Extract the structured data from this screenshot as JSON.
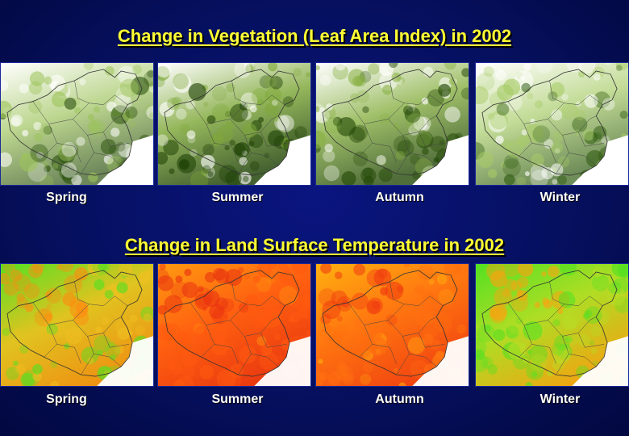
{
  "vegetation": {
    "title": "Change in Vegetation (Leaf Area Index) in 2002",
    "panels": [
      {
        "season": "Spring",
        "palette": [
          "#ffffff",
          "#9dc35a",
          "#274d0a"
        ],
        "density": 0.35
      },
      {
        "season": "Summer",
        "palette": [
          "#ffffff",
          "#7fa83a",
          "#1f4206"
        ],
        "density": 0.8
      },
      {
        "season": "Autumn",
        "palette": [
          "#ffffff",
          "#88b043",
          "#234807"
        ],
        "density": 0.7
      },
      {
        "season": "Winter",
        "palette": [
          "#ffffff",
          "#a8cc68",
          "#2e5a0e"
        ],
        "density": 0.4
      }
    ]
  },
  "temperature": {
    "title": "Change in Land Surface Temperature in 2002",
    "panels": [
      {
        "season": "Spring",
        "palette": [
          "#55e022",
          "#f0c020",
          "#ff8a10"
        ],
        "level": 0.45
      },
      {
        "season": "Summer",
        "palette": [
          "#ff9a10",
          "#ff5a10",
          "#e83010"
        ],
        "level": 0.95
      },
      {
        "season": "Autumn",
        "palette": [
          "#ffb010",
          "#ff7010",
          "#f03a10"
        ],
        "level": 0.85
      },
      {
        "season": "Winter",
        "palette": [
          "#55e022",
          "#b8dd25",
          "#ffa010"
        ],
        "level": 0.35
      }
    ]
  }
}
